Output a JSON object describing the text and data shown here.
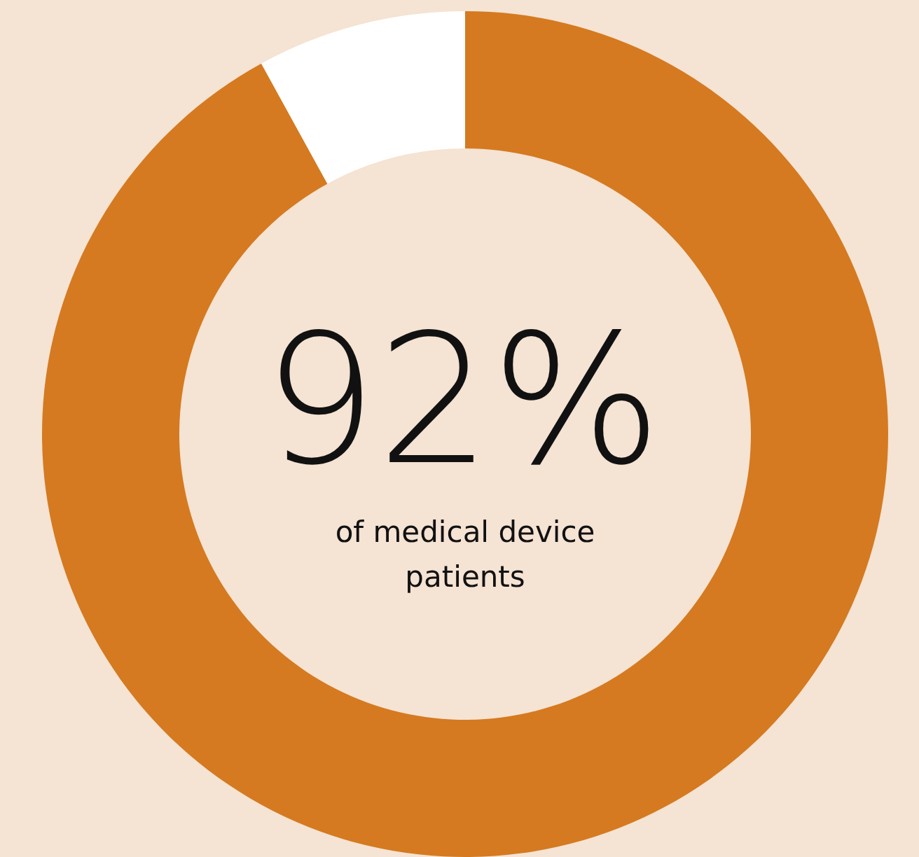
{
  "chart_data": {
    "type": "donut",
    "categories": [
      null,
      null
    ],
    "values": [
      92,
      8
    ],
    "colors": [
      "#d57a20",
      "#ffffff"
    ],
    "value_labels": [
      "92%",
      null
    ],
    "annotations": [
      "of medical device patients"
    ]
  }
}
